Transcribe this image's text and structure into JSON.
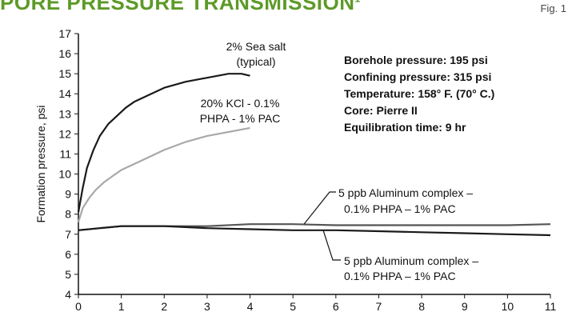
{
  "header": {
    "title": "Pore pressure transmission",
    "title_mark": "1",
    "figure_label": "Fig. 1"
  },
  "chart_data": {
    "type": "line",
    "title": "Pore pressure transmission",
    "xlabel": "",
    "ylabel": "Formation pressure, psi",
    "xlim": [
      0,
      11
    ],
    "ylim": [
      4,
      17
    ],
    "x_ticks": [
      0,
      1,
      2,
      3,
      4,
      5,
      6,
      7,
      8,
      9,
      10,
      11
    ],
    "y_ticks": [
      4,
      5,
      6,
      7,
      8,
      9,
      10,
      11,
      12,
      13,
      14,
      15,
      16,
      17
    ],
    "grid": false,
    "colors": {
      "dark": "#1a1a1a",
      "gray": "#a8a8a8",
      "mid": "#555555"
    },
    "series": [
      {
        "name": "2% Sea salt (typical)",
        "color": "#1a1a1a",
        "x": [
          0,
          0.1,
          0.2,
          0.35,
          0.5,
          0.7,
          0.9,
          1.1,
          1.3,
          1.6,
          2.0,
          2.5,
          3.0,
          3.5,
          3.8,
          4.0
        ],
        "y": [
          8.1,
          9.3,
          10.3,
          11.2,
          11.9,
          12.5,
          12.9,
          13.3,
          13.6,
          13.9,
          14.3,
          14.6,
          14.8,
          15.0,
          15.0,
          14.9
        ]
      },
      {
        "name": "20% KCl - 0.1% PHPA - 1% PAC",
        "color": "#a8a8a8",
        "x": [
          0,
          0.1,
          0.25,
          0.4,
          0.6,
          0.8,
          1.0,
          1.3,
          1.6,
          2.0,
          2.5,
          3.0,
          3.5,
          4.0
        ],
        "y": [
          7.6,
          8.3,
          8.8,
          9.2,
          9.6,
          9.9,
          10.2,
          10.5,
          10.8,
          11.2,
          11.6,
          11.9,
          12.1,
          12.3
        ]
      },
      {
        "name": "5 ppb Aluminum complex – 0.1% PHPA – 1% PAC (upper)",
        "color": "#555555",
        "x": [
          0,
          0.5,
          1.0,
          1.5,
          2.0,
          3.0,
          4.0,
          5.0,
          6.0,
          7.0,
          8.0,
          9.0,
          10.0,
          11.0
        ],
        "y": [
          7.2,
          7.3,
          7.4,
          7.4,
          7.4,
          7.4,
          7.5,
          7.5,
          7.45,
          7.45,
          7.45,
          7.45,
          7.45,
          7.5
        ]
      },
      {
        "name": "5 ppb Aluminum complex – 0.1% PHPA – 1% PAC (lower)",
        "color": "#1a1a1a",
        "x": [
          0,
          0.5,
          1.0,
          1.5,
          2.0,
          3.0,
          4.0,
          5.0,
          6.0,
          7.0,
          8.0,
          9.0,
          10.0,
          11.0
        ],
        "y": [
          7.2,
          7.3,
          7.4,
          7.4,
          7.4,
          7.3,
          7.25,
          7.2,
          7.2,
          7.15,
          7.1,
          7.05,
          7.0,
          6.95
        ]
      }
    ],
    "annotations": {
      "sea_salt_line1": "2% Sea salt",
      "sea_salt_line2": "(typical)",
      "kcl_line1": "20% KCl - 0.1%",
      "kcl_line2": "PHPA - 1% PAC",
      "al_upper_line1": "5 ppb Aluminum complex –",
      "al_upper_line2": "0.1% PHPA – 1% PAC",
      "al_lower_line1": "5 ppb Aluminum complex –",
      "al_lower_line2": "0.1% PHPA – 1% PAC"
    },
    "conditions": [
      "Borehole pressure: 195 psi",
      "Confining pressure: 315 psi",
      "Temperature: 158° F. (70° C.)",
      "Core: Pierre II",
      "Equilibration time: 9 hr"
    ]
  }
}
